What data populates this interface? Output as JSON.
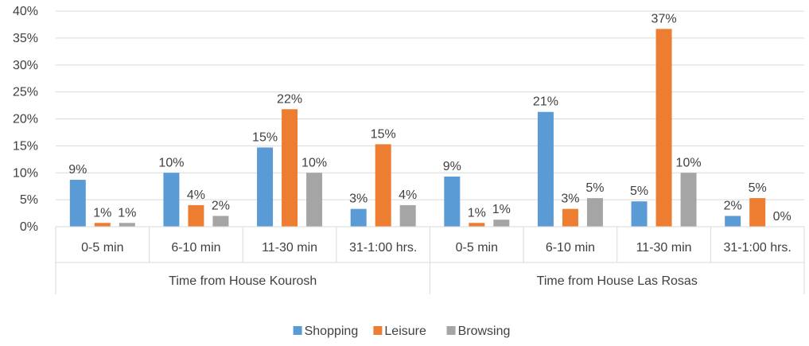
{
  "chart_data": {
    "type": "bar",
    "groups": [
      {
        "label": "Time from House Kourosh",
        "categories": [
          "0-5 min",
          "6-10 min",
          "11-30 min",
          "31-1:00 hrs."
        ]
      },
      {
        "label": "Time from House Las Rosas",
        "categories": [
          "0-5 min",
          "6-10 min",
          "11-30 min",
          "31-1:00 hrs."
        ]
      }
    ],
    "series": [
      {
        "name": "Shopping",
        "color": "#5B9BD5",
        "values": [
          8.7,
          10.0,
          14.7,
          3.3,
          9.3,
          21.3,
          4.7,
          2.0
        ],
        "labels": [
          "9%",
          "10%",
          "15%",
          "3%",
          "9%",
          "21%",
          "5%",
          "2%"
        ]
      },
      {
        "name": "Leisure",
        "color": "#ED7D31",
        "values": [
          0.7,
          4.0,
          21.8,
          15.3,
          0.7,
          3.3,
          36.7,
          5.3
        ],
        "labels": [
          "1%",
          "4%",
          "22%",
          "15%",
          "1%",
          "3%",
          "37%",
          "5%"
        ]
      },
      {
        "name": "Browsing",
        "color": "#A5A5A5",
        "values": [
          0.7,
          2.0,
          10.0,
          4.0,
          1.3,
          5.3,
          10.0,
          0.0
        ],
        "labels": [
          "1%",
          "2%",
          "10%",
          "4%",
          "1%",
          "5%",
          "10%",
          "0%"
        ]
      }
    ],
    "ylim": [
      0,
      40
    ],
    "yticks": [
      "0%",
      "5%",
      "10%",
      "15%",
      "20%",
      "25%",
      "30%",
      "35%",
      "40%"
    ],
    "grid": true,
    "legend_position": "bottom"
  }
}
